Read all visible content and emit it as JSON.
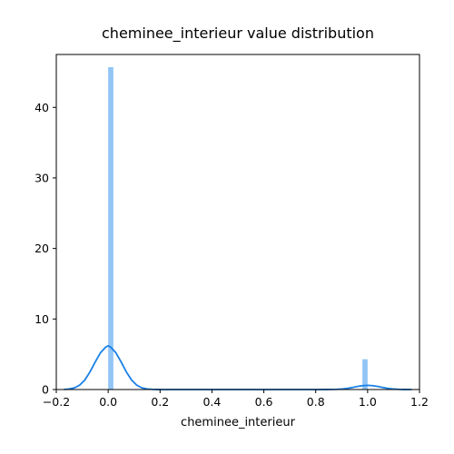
{
  "chart_data": {
    "type": "bar",
    "title": "cheminee_interieur value distribution",
    "xlabel": "cheminee_interieur",
    "ylabel": "",
    "xlim": [
      -0.2,
      1.2
    ],
    "ylim": [
      0,
      47.5
    ],
    "x_ticks": [
      -0.2,
      0.0,
      0.2,
      0.4,
      0.6,
      0.8,
      1.0,
      1.2
    ],
    "x_tick_labels": [
      "−0.2",
      "0.0",
      "0.2",
      "0.4",
      "0.6",
      "0.8",
      "1.0",
      "1.2"
    ],
    "y_ticks": [
      0,
      10,
      20,
      30,
      40
    ],
    "y_tick_labels": [
      "0",
      "10",
      "20",
      "30",
      "40"
    ],
    "histogram": {
      "bins": [
        {
          "x0": 0.0,
          "x1": 0.02,
          "density": 45.7
        },
        {
          "x0": 0.98,
          "x1": 1.0,
          "density": 4.3
        }
      ],
      "color": "#92c5f5"
    },
    "kde": {
      "color": "#1a80e6",
      "x": [
        -0.17,
        -0.15,
        -0.13,
        -0.11,
        -0.09,
        -0.07,
        -0.05,
        -0.03,
        -0.01,
        0.0,
        0.01,
        0.03,
        0.05,
        0.07,
        0.09,
        0.11,
        0.13,
        0.15,
        0.17,
        0.19,
        0.21,
        0.25,
        0.3,
        0.4,
        0.5,
        0.6,
        0.7,
        0.75,
        0.8,
        0.84,
        0.88,
        0.9,
        0.92,
        0.94,
        0.96,
        0.98,
        1.0,
        1.02,
        1.04,
        1.06,
        1.08,
        1.1,
        1.12,
        1.14,
        1.17
      ],
      "y": [
        0.02,
        0.08,
        0.24,
        0.62,
        1.35,
        2.5,
        3.9,
        5.2,
        6.0,
        6.2,
        6.0,
        5.2,
        3.9,
        2.5,
        1.35,
        0.62,
        0.24,
        0.08,
        0.03,
        0.01,
        0.0,
        0.0,
        0.0,
        0.0,
        0.0,
        0.0,
        0.0,
        0.0,
        0.0,
        0.01,
        0.03,
        0.07,
        0.15,
        0.28,
        0.43,
        0.55,
        0.6,
        0.55,
        0.43,
        0.28,
        0.15,
        0.07,
        0.03,
        0.01,
        0.0
      ]
    },
    "grid": false
  }
}
